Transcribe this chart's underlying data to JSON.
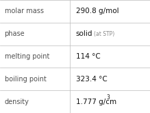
{
  "rows": [
    {
      "label": "molar mass",
      "value": "290.8 g/mol",
      "value_extra": null,
      "superscript": false
    },
    {
      "label": "phase",
      "value": "solid",
      "value_extra": "(at STP)",
      "superscript": false
    },
    {
      "label": "melting point",
      "value": "114 °C",
      "value_extra": null,
      "superscript": false
    },
    {
      "label": "boiling point",
      "value": "323.4 °C",
      "value_extra": null,
      "superscript": false
    },
    {
      "label": "density",
      "value": "1.777 g/cm",
      "value_extra": "3",
      "superscript": true
    }
  ],
  "bg_color": "#ffffff",
  "grid_color": "#bbbbbb",
  "label_color": "#505050",
  "value_color": "#111111",
  "extra_color": "#888888",
  "label_fontsize": 7.0,
  "value_fontsize": 7.5,
  "extra_fontsize": 5.5,
  "sup_fontsize": 5.5,
  "col_split": 0.465,
  "figw": 2.19,
  "figh": 1.64,
  "dpi": 100
}
